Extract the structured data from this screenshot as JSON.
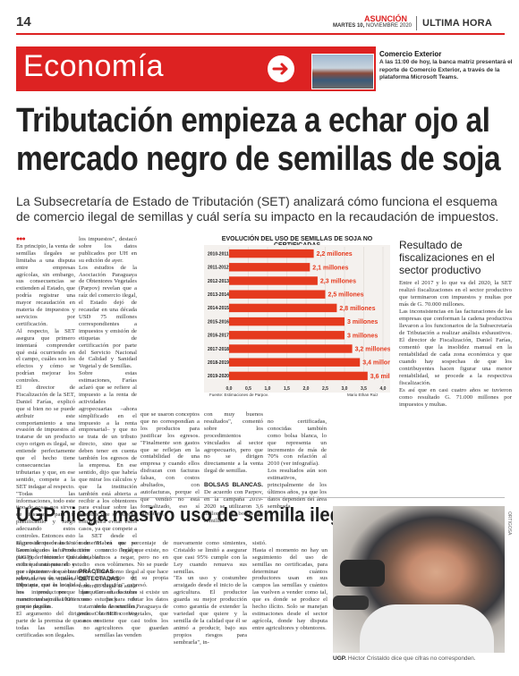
{
  "header": {
    "page_number": "14",
    "city": "ASUNCIÓN",
    "date_bold": "MARTES 10,",
    "date_rest": " NOVIEMBRE 2020",
    "section_right": "ULTIMA HORA"
  },
  "banner": {
    "section": "Economía"
  },
  "side_news": {
    "title": "Comercio Exterior",
    "body": "A las 11:00 de hoy, la banca matriz presentará el reporte de Comercio Exterior, a través de la plataforma Microsoft Teams."
  },
  "article1": {
    "headline": "Tributación empieza a echar ojo al mercado negro de semillas de soja",
    "deck": "La Subsecretaría de Estado de Tributación (SET) analizará cómo funciona el esquema de comercio ilegal de semillas y cuál sería su impacto en la recaudación de impuestos.",
    "dots": "●●●",
    "col1": "En principio, la venta de semillas ilegales se limitaba a una disputa entre empresas agrícolas, sin embargo, sus consecuencias se extienden al Estado, que podría registrar una mayor recaudación en materia de impuestos y servicios por certificación.\n Al respecto, la SET asegura que primero intentará comprender qué está ocurriendo en el campo, cuáles son los efectos y cómo se podrían mejorar los controles.\n El director de Fiscalización de la SET, Daniel Farías, explicó que si bien no se puede atribuir este comportamiento a una evasión de impuestos al tratarse de un producto cuyo origen es ilegal, se entiende perfectamente que el hecho tiene consecuencias tributarias y que, en ese sentido, compete a la SET indagar al respecto.\n \"Todas las informaciones, todo este tipo de cosas nos sirven de insumos para ir planificando y luego adecuando estos controles. Entonces esto seguro de que vamos a hacer algunos esfuerzos para poder entender qué es lo que está pasando y por supuesto ver qué tan relevante es en materia tributaria, que es lo que nos interesa, porque nuestro trabajo es 100% que se paguen",
    "col2_top": "los impuestos\", destacó sobre los datos publicados por UH en su edición de ayer.\n Los estudios de la Asociación Paraguaya de Obtentores Vegetales (Parpov) revelan que a raíz del comercio ilegal, el Estado dejó de recaudar en una década USD 75 millones correspondientes a impuestos y emisión de etiquetas de certificación por parte del Servicio Nacional de Calidad y Sanidad Vegetal y de Semillas.\n Sobre estas estimaciones, Farías aclaró que se refiere al impuesto a la renta de actividades agropecuarias –ahora simplificado en el impuesto a la renta empresarial– y que no se trata de un tributo directo, sino que se deben tener en cuenta también los egresos de la empresa. En ese sentido, dijo que habría que mirar los cálculos y que la institución también está abierta a recibir a los obtentores para evaluar sobre las medidas que se pueden tomar para evitar estos casos, ya que compete a la SET desde el momento en que se tiene un \"eclejo contable\".",
    "col2_sub": "PRÁCTICAS DETECTADAS.",
    "col2_bottom": " El comercio ilegal se suele blanquear en facturas como pack de tratamiento de semillas, incluso la SET conoce casos en",
    "col3": "que se usaron conceptos que no correspondían a los productos para justificar los egresos. \"Finalmente son gastos que se reflejan en la contabilidad de una empresa y cuando ellos disfrazan con facturas falsas, con costos abultados, con autofacturas, porque el que vendió no está formalizado, eso sí atacamos,",
    "col4_a": "con muy buenos resultados\", comentó sobre los procedimientos vinculados al sector agropecuario, pero que no se dirigen directamente a la venta ilegal de semillas.",
    "col4_sub": "BOLSAS BLANCAS.",
    "col4_b": " De acuerdo con Parpov, en la campaña 2019-2020 se utilizaron 3,6 millones de bolsas de semillas",
    "col5": "no certificadas, conocidas también como bolsa blanca, lo que representa un incremento de más de 70% con relación al 2010 (ver infografía).\n Los resultados aún son estimativos, principalmente de los últimos años, ya que los datos dependen del área sembrada."
  },
  "chart_data": {
    "type": "bar",
    "orientation": "horizontal",
    "title": "EVOLUCIÓN DEL USO DE SEMILLAS DE SOJA NO CERTIFICADAS",
    "categories": [
      "2010-2011",
      "2011-2012",
      "2012-2013",
      "2013-2014",
      "2014-2015",
      "2015-2016",
      "2016-2017",
      "2017-2018",
      "2018-2019",
      "2019-2020"
    ],
    "values": [
      2.2,
      2.1,
      2.3,
      2.5,
      2.8,
      3.0,
      3.0,
      3.2,
      3.4,
      3.6
    ],
    "value_labels": [
      "2,2 millones",
      "2,1 millones",
      "2,3 millones",
      "2,5 millones",
      "2,8 millones",
      "3 millones",
      "3 millones",
      "3,2 millones",
      "3,4 millones",
      "3,6 millones"
    ],
    "x_ticks": [
      "0,0",
      "0,5",
      "1,0",
      "1,5",
      "2,0",
      "2,5",
      "3,0",
      "3,5",
      "4,0"
    ],
    "xlim": [
      0,
      4
    ],
    "source": "Fuente: Estimaciones de Parpov.",
    "credit": "Mario Ethan Ruiz",
    "bar_color": "#e53a1e",
    "label_color": "#e53a1e"
  },
  "sidebar": {
    "title": "Resultado de fiscalizaciones en el sector productivo",
    "body": "Entre el 2017 y lo que va del 2020, la SET realizó fiscalizaciones en el sector productivo que terminaron con impuestos y multas por más de G. 70.000 millones.\n Las inconsistencias en las facturaciones de las empresas que conforman la cadena productiva llevaron a los funcionarios de la Subsecretaría de Tributación a realizar análisis exhaustivos. El director de Fiscalización, Daniel Farías, comentó que la insolidez manual en la rentabilidad de cada zona económica y que cuando hay sospechas de que los contribuyentes hacen figurar una menor rentabilidad, se procede a la respectiva fiscalización.\n Es así que en casi cuatro años se tuvieron como resultado G. 71.000 millones por impuestos y multas."
  },
  "article2": {
    "headline": "UGP niega masivo uso de semilla ilegal",
    "col1": "El presidente de la Unión de Gremios de la Producción (UGP), Héctor Cristaldo, criticó duramente el estudio que hicieron los obtentores sobre el uso de semilla ilegal. Dijo que casi la totalidad de los productores que mencionan semillas hacen uso propio de ellas.\n El argumento del dirigente parte de la premisa de que no todas las semillas no certificadas son ilegales.",
    "col2": "\"Habrá un porcentaje de comercio ilegal, que existe, no vamos a negar, pero no en esos volúmenes. No se puede poner como ilegal al que hace uso propio de su propia producción\", expresó.\n Consultado sobre si existe un estudio para refutar los datos de la Asociación Paraguaya de Obtentores Vegetales, que sostiene que casi todos los agricultores que guardan semillas las venden",
    "col3": "nuevamente como simientes, Cristaldo se limitó a asegurar que casi 95% cumple con la Ley cuando renueva sus semillas.\n \"Es un uso y costumbre arraigado desde el inicio de la agricultura. El productor guarda su mejor producción como garantía de extender la variedad que quiere y la semilla de la calidad que él se animó a producir, bajo sus propios riesgos para sembrarla\", in-",
    "col4": "sistió.\n Hasta el momento no hay un seguimiento del uso de semillas no certificadas, para determinar cuántos productores usan en sus campos las semillas y cuántos las vuelven a vender como tal, que es donde se produce el hecho ilícito. Solo se manejan estimaciones desde el sector agrícola, donde hay disputa entre agricultores y obtentores.",
    "photo_credit": "ORTIGOSA",
    "caption_bold": "UGP.",
    "caption": " Héctor Cristaldo dice que cifras no corresponden."
  }
}
